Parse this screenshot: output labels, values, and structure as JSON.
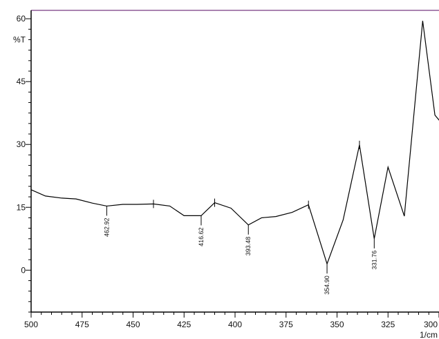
{
  "chart_data": {
    "type": "line",
    "title": "",
    "xlabel": "1/cm",
    "ylabel": "%T",
    "xlim": [
      500,
      300
    ],
    "ylim": [
      -10,
      62
    ],
    "x_ticks": [
      500,
      475,
      450,
      425,
      400,
      375,
      350,
      325,
      300
    ],
    "y_ticks": [
      0,
      15,
      30,
      45,
      60
    ],
    "grid": false,
    "colors": {
      "axis": "#000000",
      "line": "#000000",
      "frame": "#8e5a96"
    },
    "series": [
      {
        "points": [
          [
            500,
            19.2
          ],
          [
            493,
            17.7
          ],
          [
            485,
            17.2
          ],
          [
            478,
            17.0
          ],
          [
            470,
            16.0
          ],
          [
            462.92,
            15.3
          ],
          [
            455,
            15.7
          ],
          [
            448,
            15.7
          ],
          [
            440,
            15.8
          ],
          [
            432,
            15.3
          ],
          [
            425,
            13.0
          ],
          [
            416.62,
            13.0
          ],
          [
            410,
            16.1
          ],
          [
            402,
            14.8
          ],
          [
            393.48,
            10.8
          ],
          [
            387,
            12.5
          ],
          [
            380,
            12.8
          ],
          [
            372,
            13.8
          ],
          [
            364,
            15.6
          ],
          [
            354.9,
            1.5
          ],
          [
            347,
            12.0
          ],
          [
            339,
            29.9
          ],
          [
            331.76,
            7.5
          ],
          [
            325,
            24.6
          ],
          [
            317,
            12.9
          ],
          [
            308,
            59.5
          ],
          [
            302,
            37.0
          ],
          [
            296,
            33.5
          ]
        ]
      }
    ],
    "peak_labels": [
      {
        "x": 462.92,
        "label": "462.92"
      },
      {
        "x": 416.62,
        "label": "416.62"
      },
      {
        "x": 393.48,
        "label": "393.48"
      },
      {
        "x": 354.9,
        "label": "354.90"
      },
      {
        "x": 331.76,
        "label": "331.76"
      }
    ],
    "peak_ticks": [
      440,
      410,
      364,
      339
    ]
  }
}
